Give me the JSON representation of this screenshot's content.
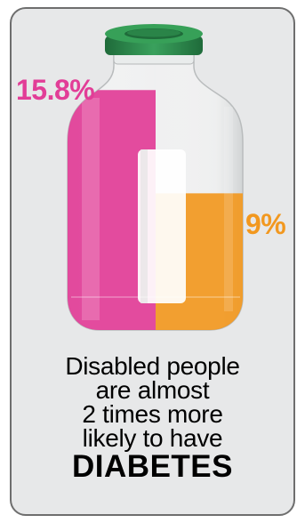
{
  "chart_data": {
    "type": "bar",
    "categories": [
      "",
      ""
    ],
    "values": [
      15.8,
      9
    ],
    "value_labels": [
      "15.8%",
      "9%"
    ],
    "unit": "%",
    "ylim": [
      0,
      18.1
    ],
    "colors": [
      "#e23d97",
      "#f2981f"
    ]
  },
  "caption": {
    "lines": [
      "Disabled people",
      "are almost",
      "2 times more",
      "likely to have"
    ],
    "emphasis": "DIABETES"
  },
  "colors": {
    "magenta": "#e23d97",
    "orange": "#f2981f",
    "cap": "#2e8b4f",
    "card_bg": "#e7e8e9",
    "border": "#6e6e6e"
  }
}
